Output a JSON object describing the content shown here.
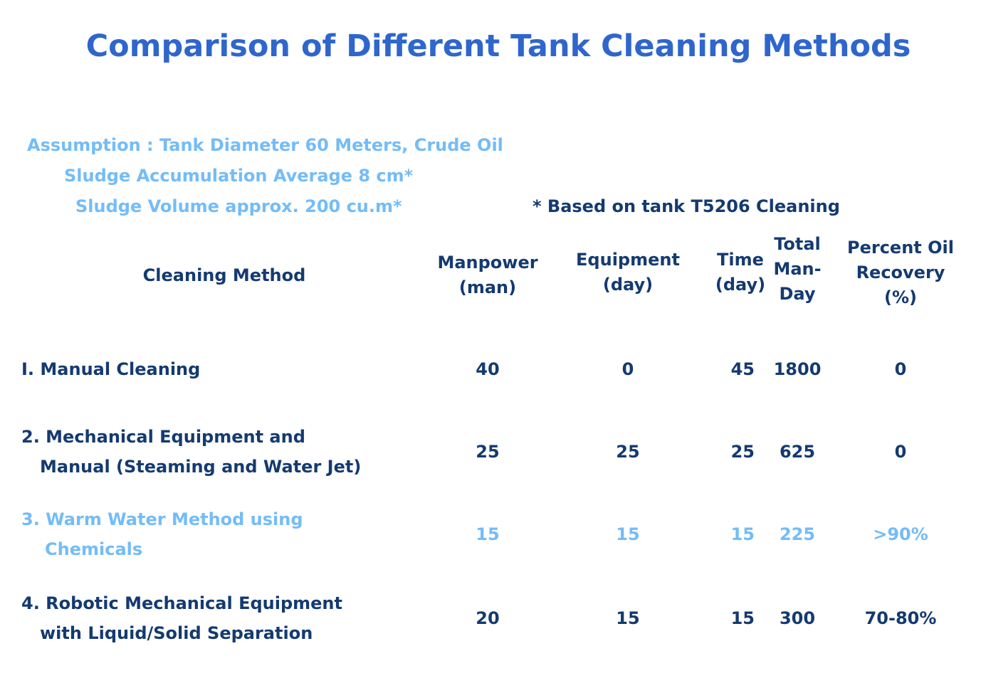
{
  "title": "Comparison of Different Tank Cleaning Methods",
  "assumptions": [
    "Assumption : Tank Diameter 60 Meters, Crude Oil",
    "Sludge Accumulation Average 8 cm*",
    "Sludge Volume approx. 200 cu.m*"
  ],
  "footnote": "* Based on tank T5206 Cleaning",
  "colors": {
    "title": "#2f66cc",
    "highlight": "#74bcf8",
    "text": "#143a70"
  },
  "table": {
    "headers": {
      "method": "Cleaning Method",
      "manpower": [
        "Manpower",
        "(man)"
      ],
      "equipment": [
        "Equipment",
        "(day)"
      ],
      "time": [
        "Time",
        "(day)"
      ],
      "total": [
        "Total",
        "Man-",
        "Day"
      ],
      "recovery": [
        "Percent Oil",
        "Recovery",
        "(%)"
      ]
    },
    "rows": [
      {
        "method": [
          "I. Manual Cleaning"
        ],
        "manpower": "40",
        "equipment": "0",
        "time": "45",
        "total": "1800",
        "recovery": "0",
        "highlighted": false
      },
      {
        "method": [
          "2. Mechanical Equipment and",
          "Manual (Steaming and Water Jet)"
        ],
        "manpower": "25",
        "equipment": "25",
        "time": "25",
        "total": "625",
        "recovery": "0",
        "highlighted": false
      },
      {
        "method": [
          "3. Warm Water Method using",
          "Chemicals"
        ],
        "manpower": "15",
        "equipment": "15",
        "time": "15",
        "total": "225",
        "recovery": ">90%",
        "highlighted": true
      },
      {
        "method": [
          "4. Robotic Mechanical Equipment",
          "with Liquid/Solid Separation"
        ],
        "manpower": "20",
        "equipment": "15",
        "time": "15",
        "total": "300",
        "recovery": "70-80%",
        "highlighted": false
      }
    ]
  }
}
